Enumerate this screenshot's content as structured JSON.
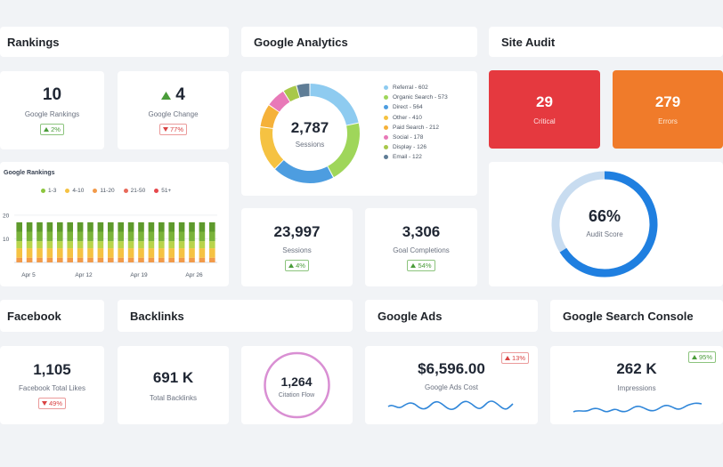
{
  "sections": {
    "rankings": "Rankings",
    "analytics": "Google Analytics",
    "audit": "Site Audit",
    "facebook": "Facebook",
    "backlinks": "Backlinks",
    "ads": "Google Ads",
    "console": "Google Search Console"
  },
  "rankings": {
    "google_rankings": {
      "value": "10",
      "label": "Google Rankings",
      "badge": "2%"
    },
    "google_change": {
      "value": "4",
      "label": "Google Change",
      "badge": "77%"
    }
  },
  "chart_data": {
    "type": "bar",
    "title": "Google Rankings",
    "stacked": true,
    "legend": [
      "1-3",
      "4-10",
      "11-20",
      "21-50",
      "51+"
    ],
    "legend_colors": [
      "#8cc63e",
      "#f5c242",
      "#f29a4a",
      "#e8695a",
      "#e6484c"
    ],
    "segment_colors": [
      "#f29a4a",
      "#f5c242",
      "#b8d44a",
      "#7ab33a",
      "#5e9a2c"
    ],
    "y_ticks": [
      "20",
      "10"
    ],
    "ylim": [
      0,
      26
    ],
    "x_ticks": [
      "Apr 5",
      "Apr 12",
      "Apr 19",
      "Apr 26"
    ],
    "bars": [
      [
        2,
        4,
        3,
        4,
        4
      ],
      [
        2,
        4,
        3,
        4,
        4
      ],
      [
        2,
        4,
        3,
        4,
        4
      ],
      [
        2,
        4,
        3,
        4,
        4
      ],
      [
        2,
        4,
        3,
        4,
        4
      ],
      [
        2,
        4,
        3,
        4,
        4
      ],
      [
        2,
        4,
        3,
        4,
        4
      ],
      [
        2,
        4,
        3,
        4,
        4
      ],
      [
        2,
        4,
        3,
        4,
        4
      ],
      [
        2,
        4,
        3,
        4,
        4
      ],
      [
        2,
        4,
        3,
        4,
        4
      ],
      [
        2,
        4,
        3,
        4,
        4
      ],
      [
        2,
        4,
        3,
        4,
        4
      ],
      [
        2,
        4,
        3,
        4,
        4
      ],
      [
        2,
        4,
        3,
        4,
        4
      ],
      [
        2,
        4,
        3,
        4,
        4
      ],
      [
        2,
        4,
        3,
        4,
        4
      ],
      [
        2,
        4,
        3,
        4,
        4
      ],
      [
        2,
        4,
        3,
        4,
        4
      ],
      [
        2,
        4,
        3,
        4,
        4
      ]
    ]
  },
  "analytics": {
    "sessions_total": "2,787",
    "sessions_label": "Sessions",
    "donut": [
      {
        "label": "Referral - 602",
        "value": 602,
        "color": "#8ecbf0"
      },
      {
        "label": "Organic Search - 573",
        "value": 573,
        "color": "#9fd65a"
      },
      {
        "label": "Direct - 564",
        "value": 564,
        "color": "#4d9de0"
      },
      {
        "label": "Other - 410",
        "value": 410,
        "color": "#f5c242"
      },
      {
        "label": "Paid Search - 212",
        "value": 212,
        "color": "#f5b13a"
      },
      {
        "label": "Social - 178",
        "value": 178,
        "color": "#e879b8"
      },
      {
        "label": "Display - 126",
        "value": 126,
        "color": "#a8c84a"
      },
      {
        "label": "Email - 122",
        "value": 122,
        "color": "#5f7d96"
      }
    ],
    "sessions": {
      "value": "23,997",
      "label": "Sessions",
      "badge": "4%"
    },
    "goals": {
      "value": "3,306",
      "label": "Goal Completions",
      "badge": "54%"
    }
  },
  "audit": {
    "critical": {
      "value": "29",
      "label": "Critical",
      "color": "#e5393f"
    },
    "errors": {
      "value": "279",
      "label": "Errors",
      "color": "#f07b2a"
    },
    "score": {
      "value": "66%",
      "label": "Audit Score",
      "percent": 66,
      "color": "#1f7fe0",
      "track": "#c8dcf0"
    }
  },
  "facebook": {
    "value": "1,105",
    "label": "Facebook Total Likes",
    "badge": "49%"
  },
  "backlinks": {
    "total": {
      "value": "691 K",
      "label": "Total Backlinks"
    },
    "citation": {
      "value": "1,264",
      "label": "Citation Flow",
      "color": "#d98fd3"
    }
  },
  "ads": {
    "value": "$6,596.00",
    "label": "Google Ads Cost",
    "badge": "13%"
  },
  "console": {
    "value": "262 K",
    "label": "Impressions",
    "badge": "95%"
  }
}
